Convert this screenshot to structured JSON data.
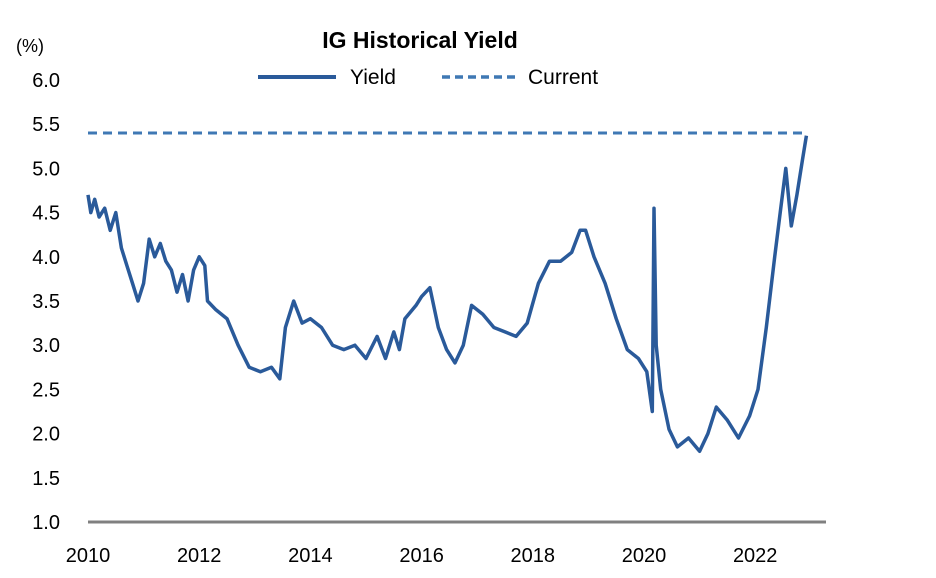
{
  "chart_data": {
    "type": "line",
    "title": "IG Historical Yield",
    "ylabel": "(%)",
    "xlabel": "",
    "ylim": [
      1.0,
      6.0
    ],
    "xlim": [
      2010.0,
      2023.0
    ],
    "y_ticks": [
      "1.0",
      "1.5",
      "2.0",
      "2.5",
      "3.0",
      "3.5",
      "4.0",
      "4.5",
      "5.0",
      "5.5",
      "6.0"
    ],
    "x_ticks": [
      "2010",
      "2012",
      "2014",
      "2016",
      "2018",
      "2020",
      "2022"
    ],
    "legend_position": "top-center",
    "grid": false,
    "colors": {
      "yield": "#2a5a9a",
      "current": "#3f78b4",
      "axis": "#808080"
    },
    "series": [
      {
        "name": "Yield",
        "style": "solid",
        "points": [
          [
            2010.0,
            4.7
          ],
          [
            2010.05,
            4.5
          ],
          [
            2010.12,
            4.65
          ],
          [
            2010.2,
            4.45
          ],
          [
            2010.3,
            4.55
          ],
          [
            2010.4,
            4.3
          ],
          [
            2010.5,
            4.5
          ],
          [
            2010.6,
            4.1
          ],
          [
            2010.7,
            3.9
          ],
          [
            2010.8,
            3.7
          ],
          [
            2010.9,
            3.5
          ],
          [
            2011.0,
            3.7
          ],
          [
            2011.1,
            4.2
          ],
          [
            2011.2,
            4.0
          ],
          [
            2011.3,
            4.15
          ],
          [
            2011.4,
            3.95
          ],
          [
            2011.5,
            3.85
          ],
          [
            2011.6,
            3.6
          ],
          [
            2011.7,
            3.8
          ],
          [
            2011.8,
            3.5
          ],
          [
            2011.9,
            3.85
          ],
          [
            2012.0,
            4.0
          ],
          [
            2012.1,
            3.9
          ],
          [
            2012.15,
            3.5
          ],
          [
            2012.3,
            3.4
          ],
          [
            2012.5,
            3.3
          ],
          [
            2012.7,
            3.0
          ],
          [
            2012.9,
            2.75
          ],
          [
            2013.1,
            2.7
          ],
          [
            2013.3,
            2.75
          ],
          [
            2013.45,
            2.62
          ],
          [
            2013.55,
            3.2
          ],
          [
            2013.7,
            3.5
          ],
          [
            2013.85,
            3.25
          ],
          [
            2014.0,
            3.3
          ],
          [
            2014.2,
            3.2
          ],
          [
            2014.4,
            3.0
          ],
          [
            2014.6,
            2.95
          ],
          [
            2014.8,
            3.0
          ],
          [
            2015.0,
            2.85
          ],
          [
            2015.2,
            3.1
          ],
          [
            2015.35,
            2.85
          ],
          [
            2015.5,
            3.15
          ],
          [
            2015.6,
            2.95
          ],
          [
            2015.7,
            3.3
          ],
          [
            2015.9,
            3.45
          ],
          [
            2016.0,
            3.55
          ],
          [
            2016.15,
            3.65
          ],
          [
            2016.3,
            3.2
          ],
          [
            2016.45,
            2.95
          ],
          [
            2016.6,
            2.8
          ],
          [
            2016.75,
            3.0
          ],
          [
            2016.9,
            3.45
          ],
          [
            2017.1,
            3.35
          ],
          [
            2017.3,
            3.2
          ],
          [
            2017.5,
            3.15
          ],
          [
            2017.7,
            3.1
          ],
          [
            2017.9,
            3.25
          ],
          [
            2018.1,
            3.7
          ],
          [
            2018.3,
            3.95
          ],
          [
            2018.5,
            3.95
          ],
          [
            2018.7,
            4.05
          ],
          [
            2018.85,
            4.3
          ],
          [
            2018.95,
            4.3
          ],
          [
            2019.1,
            4.0
          ],
          [
            2019.3,
            3.7
          ],
          [
            2019.5,
            3.3
          ],
          [
            2019.7,
            2.95
          ],
          [
            2019.9,
            2.85
          ],
          [
            2020.05,
            2.7
          ],
          [
            2020.15,
            2.25
          ],
          [
            2020.18,
            4.55
          ],
          [
            2020.22,
            3.0
          ],
          [
            2020.3,
            2.5
          ],
          [
            2020.45,
            2.05
          ],
          [
            2020.6,
            1.85
          ],
          [
            2020.8,
            1.95
          ],
          [
            2021.0,
            1.8
          ],
          [
            2021.15,
            2.0
          ],
          [
            2021.3,
            2.3
          ],
          [
            2021.5,
            2.15
          ],
          [
            2021.7,
            1.95
          ],
          [
            2021.9,
            2.2
          ],
          [
            2022.05,
            2.5
          ],
          [
            2022.2,
            3.2
          ],
          [
            2022.35,
            4.0
          ],
          [
            2022.45,
            4.5
          ],
          [
            2022.55,
            5.0
          ],
          [
            2022.65,
            4.35
          ],
          [
            2022.75,
            4.7
          ],
          [
            2022.85,
            5.1
          ],
          [
            2022.92,
            5.37
          ]
        ]
      },
      {
        "name": "Current",
        "style": "dashed",
        "points": [
          [
            2010.0,
            5.4
          ],
          [
            2022.92,
            5.4
          ]
        ]
      }
    ]
  }
}
